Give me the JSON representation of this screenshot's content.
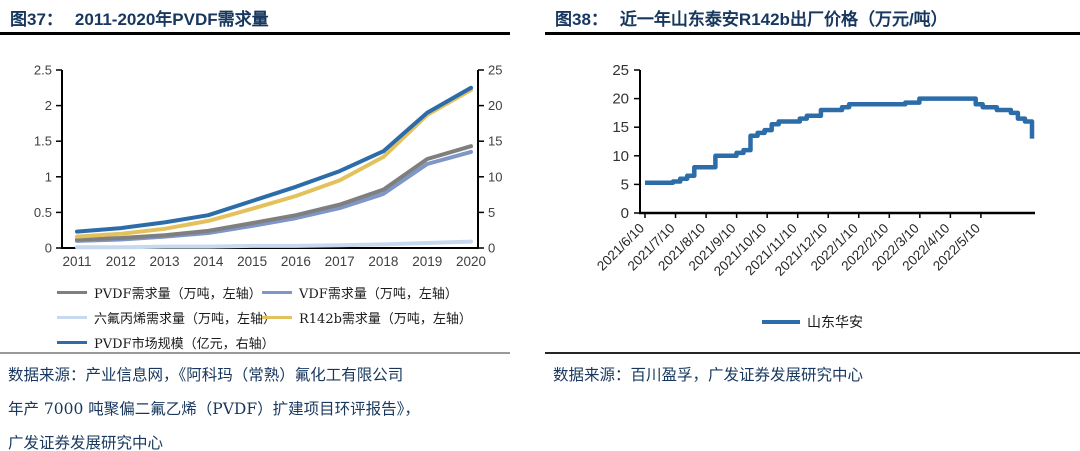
{
  "figures": [
    {
      "label": "图37：",
      "title": "2011-2020年PVDF需求量",
      "source_lines": [
        "数据来源：产业信息网，《阿科玛（常熟）氟化工有限公司",
        "年产 7000 吨聚偏二氟乙烯（PVDF）扩建项目环评报告》，",
        "广发证券发展研究中心"
      ]
    },
    {
      "label": "图38：",
      "title": "近一年山东泰安R142b出厂价格（万元/吨）",
      "source_lines": [
        "数据来源：百川盈孚，广发证券发展研究中心"
      ]
    }
  ],
  "colors": {
    "title_navy": "#17375e",
    "axis_text": "#404040",
    "axis_line": "#000000",
    "accent_blue": "#2b6ca9"
  },
  "chart_data": [
    {
      "type": "line",
      "title": "2011-2020年PVDF需求量",
      "categories": [
        "2011",
        "2012",
        "2013",
        "2014",
        "2015",
        "2016",
        "2017",
        "2018",
        "2019",
        "2020"
      ],
      "left_axis": {
        "min": 0,
        "max": 2.5,
        "ticks": [
          "0",
          "0.5",
          "1",
          "1.5",
          "2",
          "2.5"
        ],
        "unit": "万吨"
      },
      "right_axis": {
        "min": 0,
        "max": 25,
        "ticks": [
          "0",
          "5",
          "10",
          "15",
          "20",
          "25"
        ],
        "unit": "亿元"
      },
      "grid": false,
      "legend_position": "bottom",
      "draw_order": [
        2,
        1,
        0,
        3,
        4
      ],
      "series": [
        {
          "name": "PVDF需求量（万吨，左轴）",
          "axis": "left",
          "color": "#7f7f7f",
          "values": [
            0.12,
            0.14,
            0.18,
            0.24,
            0.35,
            0.46,
            0.61,
            0.82,
            1.25,
            1.43
          ]
        },
        {
          "name": "VDF需求量（万吨，左轴）",
          "axis": "left",
          "color": "#7e96c8",
          "values": [
            0.1,
            0.12,
            0.16,
            0.21,
            0.31,
            0.42,
            0.56,
            0.76,
            1.18,
            1.35
          ]
        },
        {
          "name": "六氟丙烯需求量（万吨，左轴）",
          "axis": "left",
          "color": "#c7d9ee",
          "values": [
            0.01,
            0.01,
            0.02,
            0.02,
            0.03,
            0.03,
            0.04,
            0.05,
            0.07,
            0.09
          ]
        },
        {
          "name": "R142b需求量（万吨，左轴）",
          "axis": "left",
          "color": "#e3c25e",
          "values": [
            0.16,
            0.2,
            0.27,
            0.38,
            0.55,
            0.73,
            0.95,
            1.28,
            1.87,
            2.22
          ]
        },
        {
          "name": "PVDF市场规模（亿元，右轴）",
          "axis": "right",
          "color": "#2b6ca9",
          "values": [
            2.3,
            2.8,
            3.6,
            4.6,
            6.6,
            8.6,
            10.8,
            13.6,
            19.0,
            22.5
          ]
        }
      ]
    },
    {
      "type": "line",
      "step": true,
      "title": "近一年山东泰安R142b出厂价格（万元/吨）",
      "y_axis": {
        "min": 0,
        "max": 25,
        "ticks": [
          "0",
          "5",
          "10",
          "15",
          "20",
          "25"
        ],
        "unit": "万元/吨"
      },
      "x_tick_labels": [
        "2021/6/10",
        "2021/7/10",
        "2021/8/10",
        "2021/9/10",
        "2021/10/10",
        "2021/11/10",
        "2021/12/10",
        "2022/1/10",
        "2022/2/10",
        "2022/3/10",
        "2022/4/10",
        "2022/5/10"
      ],
      "legend_position": "bottom",
      "series": [
        {
          "name": "山东华安",
          "color": "#2b6ca9",
          "values": [
            5.3,
            5.3,
            5.3,
            5.3,
            5.5,
            6,
            6.5,
            8,
            8,
            8,
            10,
            10,
            10,
            10.5,
            11,
            13.5,
            14,
            14.5,
            15.5,
            16,
            16,
            16,
            16.5,
            17,
            17,
            18,
            18,
            18,
            18.5,
            19,
            19,
            19,
            19,
            19,
            19,
            19,
            19,
            19.3,
            19.3,
            20,
            20,
            20,
            20,
            20,
            20,
            20,
            20,
            19,
            18.5,
            18.5,
            18,
            18,
            17.5,
            16.5,
            16,
            13
          ]
        }
      ]
    }
  ]
}
